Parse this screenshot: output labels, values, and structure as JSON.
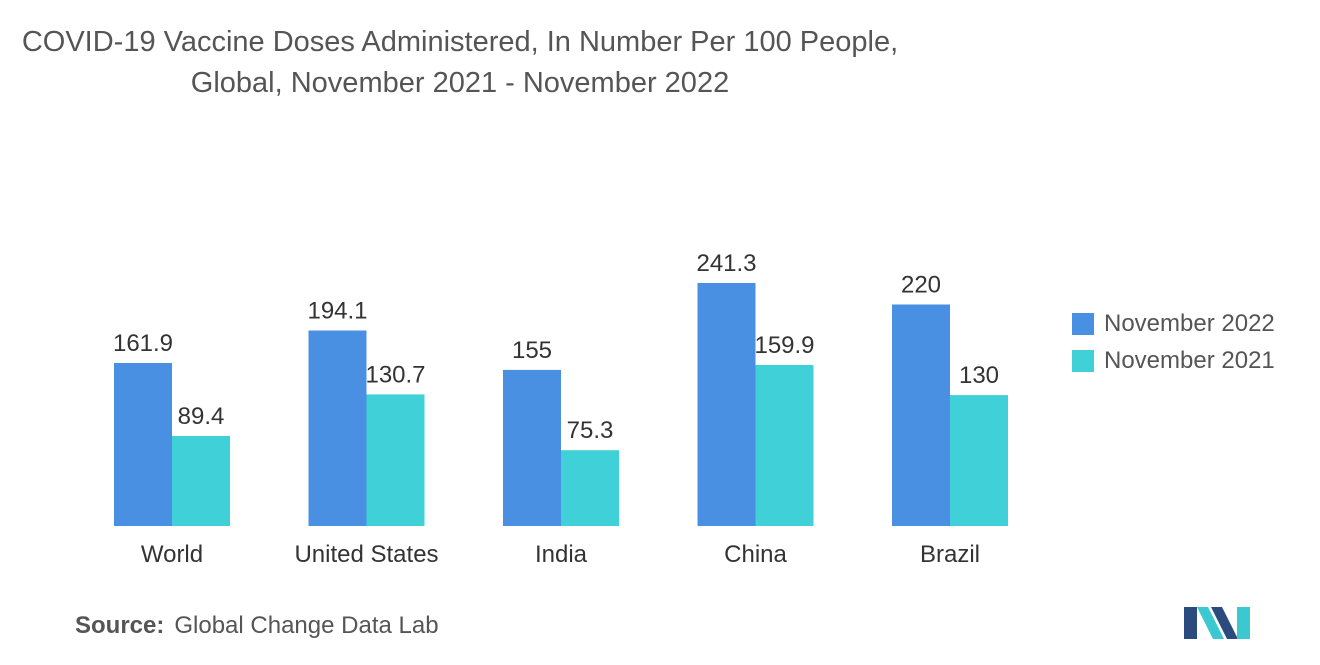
{
  "chart_data": {
    "type": "bar",
    "title_lines": [
      "COVID-19 Vaccine Doses Administered, In Number Per 100 People,",
      "Global, November 2021 - November 2022"
    ],
    "categories": [
      "World",
      "United States",
      "India",
      "China",
      "Brazil"
    ],
    "series": [
      {
        "name": "November 2022",
        "color": "#4a90e2",
        "values": [
          161.9,
          194.1,
          155,
          241.3,
          220
        ],
        "labels": [
          "161.9",
          "194.1",
          "155",
          "241.3",
          "220"
        ]
      },
      {
        "name": "November 2021",
        "color": "#40d0d8",
        "values": [
          89.4,
          130.7,
          75.3,
          159.9,
          130
        ],
        "labels": [
          "89.4",
          "130.7",
          "75.3",
          "159.9",
          "130"
        ]
      }
    ],
    "xlabel": "",
    "ylabel": "",
    "ylim": [
      0,
      241.3
    ],
    "grid": false,
    "legend_position": "right"
  },
  "source": {
    "label": "Source:",
    "text": "Global Change Data Lab"
  },
  "logo": {
    "name": "mordor-intelligence-logo",
    "colors": [
      "#2b4a7e",
      "#3cc8d0"
    ]
  }
}
